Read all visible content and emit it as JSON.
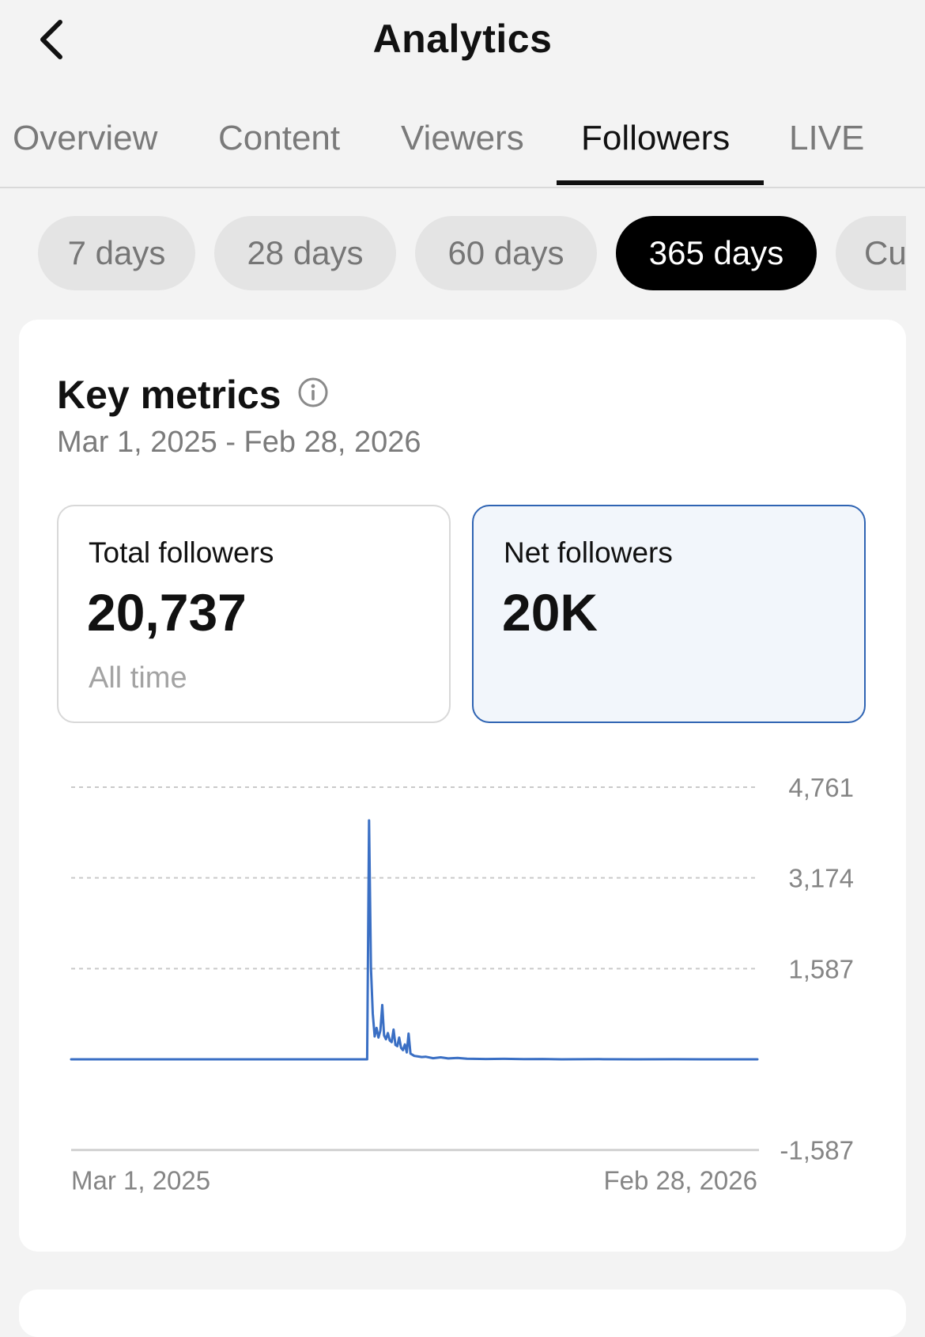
{
  "header": {
    "title": "Analytics",
    "back_icon": "chevron-left-icon"
  },
  "tabs": [
    {
      "label": "Overview",
      "active": false
    },
    {
      "label": "Content",
      "active": false
    },
    {
      "label": "Viewers",
      "active": false
    },
    {
      "label": "Followers",
      "active": true
    },
    {
      "label": "LIVE",
      "active": false
    }
  ],
  "periods": [
    {
      "label": "7 days",
      "active": false
    },
    {
      "label": "28 days",
      "active": false
    },
    {
      "label": "60 days",
      "active": false
    },
    {
      "label": "365 days",
      "active": true
    },
    {
      "label": "Cu",
      "active": false
    }
  ],
  "key_metrics": {
    "title": "Key metrics",
    "info_icon": "info-icon",
    "date_range": "Mar 1, 2025 - Feb 28, 2026",
    "total": {
      "label": "Total followers",
      "value": "20,737",
      "sub": "All time"
    },
    "net": {
      "label": "Net followers",
      "value": "20K",
      "selected": true
    }
  },
  "colors": {
    "accent": "#2f64b3",
    "line": "#3a6fc4",
    "active_tab": "#111111",
    "inactive_text": "#7a7a7a"
  },
  "chart_data": {
    "type": "line",
    "title": "",
    "xlabel": "",
    "ylabel": "",
    "x_tick_labels": [
      "Mar 1, 2025",
      "Feb 28, 2026"
    ],
    "y_ticks": [
      4761,
      3174,
      1587,
      0,
      -1587
    ],
    "y_tick_labels": [
      "4,761",
      "3,174",
      "1,587",
      "",
      "-1,587"
    ],
    "ylim": [
      -1587,
      4761
    ],
    "xlim": [
      0,
      364
    ],
    "grid": true,
    "legend": "none",
    "series": [
      {
        "points": [
          [
            0,
            0
          ],
          [
            157,
            0
          ],
          [
            158,
            4180
          ],
          [
            159,
            1600
          ],
          [
            160,
            800
          ],
          [
            161,
            400
          ],
          [
            162,
            550
          ],
          [
            163,
            380
          ],
          [
            164,
            500
          ],
          [
            165,
            950
          ],
          [
            166,
            420
          ],
          [
            167,
            350
          ],
          [
            168,
            460
          ],
          [
            169,
            330
          ],
          [
            170,
            300
          ],
          [
            171,
            520
          ],
          [
            172,
            250
          ],
          [
            173,
            230
          ],
          [
            174,
            380
          ],
          [
            175,
            200
          ],
          [
            176,
            160
          ],
          [
            177,
            260
          ],
          [
            178,
            120
          ],
          [
            179,
            450
          ],
          [
            180,
            100
          ],
          [
            181,
            80
          ],
          [
            182,
            60
          ],
          [
            184,
            50
          ],
          [
            186,
            40
          ],
          [
            188,
            45
          ],
          [
            192,
            20
          ],
          [
            196,
            35
          ],
          [
            200,
            15
          ],
          [
            205,
            25
          ],
          [
            210,
            10
          ],
          [
            220,
            5
          ],
          [
            230,
            8
          ],
          [
            240,
            3
          ],
          [
            250,
            5
          ],
          [
            260,
            0
          ],
          [
            280,
            3
          ],
          [
            300,
            0
          ],
          [
            320,
            2
          ],
          [
            340,
            0
          ],
          [
            364,
            0
          ]
        ]
      }
    ]
  }
}
